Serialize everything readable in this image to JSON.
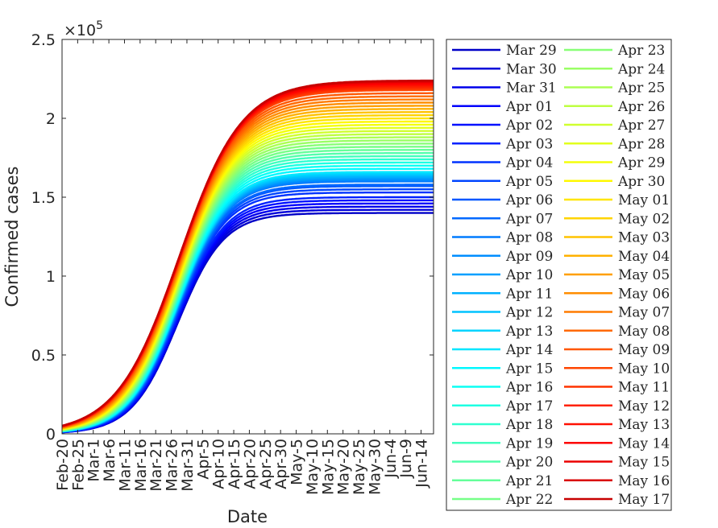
{
  "chart_data": {
    "type": "line",
    "xlabel": "Date",
    "ylabel": "Confirmed cases",
    "y_exponent_label": "×10",
    "y_exponent_power": "5",
    "y_ticks": [
      0,
      0.5,
      1,
      1.5,
      2,
      2.5
    ],
    "ylim": [
      0,
      2.5
    ],
    "y_unit_multiplier": 100000,
    "x_ticks": [
      "Feb-20",
      "Feb-25",
      "Mar-1",
      "Mar-6",
      "Mar-11",
      "Mar-16",
      "Mar-21",
      "Mar-26",
      "Mar-31",
      "Apr-5",
      "Apr-10",
      "Apr-15",
      "Apr-20",
      "Apr-25",
      "Apr-30",
      "May-5",
      "May-10",
      "May-15",
      "May-20",
      "May-25",
      "May-30",
      "Jun-4",
      "Jun-9",
      "Jun-14"
    ],
    "x_range": [
      "Feb-20",
      "Jun-18"
    ],
    "grid": false,
    "legend_placement": "outside-right",
    "legend_columns": 2,
    "series_names": [
      "Mar 29",
      "Mar 30",
      "Mar 31",
      "Apr 01",
      "Apr 02",
      "Apr 03",
      "Apr 04",
      "Apr 05",
      "Apr 06",
      "Apr 07",
      "Apr 08",
      "Apr 09",
      "Apr 10",
      "Apr 11",
      "Apr 12",
      "Apr 13",
      "Apr 14",
      "Apr 15",
      "Apr 16",
      "Apr 17",
      "Apr 18",
      "Apr 19",
      "Apr 20",
      "Apr 21",
      "Apr 22",
      "Apr 23",
      "Apr 24",
      "Apr 25",
      "Apr 26",
      "Apr 27",
      "Apr 28",
      "Apr 29",
      "Apr 30",
      "May 01",
      "May 02",
      "May 03",
      "May 04",
      "May 05",
      "May 06",
      "May 07",
      "May 08",
      "May 09",
      "May 10",
      "May 11",
      "May 12",
      "May 13",
      "May 14",
      "May 15",
      "May 16",
      "May 17"
    ],
    "series_final_values": [
      1.4,
      1.42,
      1.44,
      1.46,
      1.48,
      1.5,
      1.53,
      1.55,
      1.57,
      1.58,
      1.6,
      1.61,
      1.62,
      1.63,
      1.64,
      1.65,
      1.66,
      1.68,
      1.7,
      1.72,
      1.74,
      1.76,
      1.78,
      1.8,
      1.82,
      1.84,
      1.86,
      1.88,
      1.9,
      1.92,
      1.94,
      1.96,
      1.98,
      2.0,
      2.02,
      2.04,
      2.06,
      2.08,
      2.1,
      2.12,
      2.14,
      2.16,
      2.18,
      2.19,
      2.2,
      2.21,
      2.22,
      2.23,
      2.235,
      2.24
    ],
    "colormap": "jet"
  }
}
